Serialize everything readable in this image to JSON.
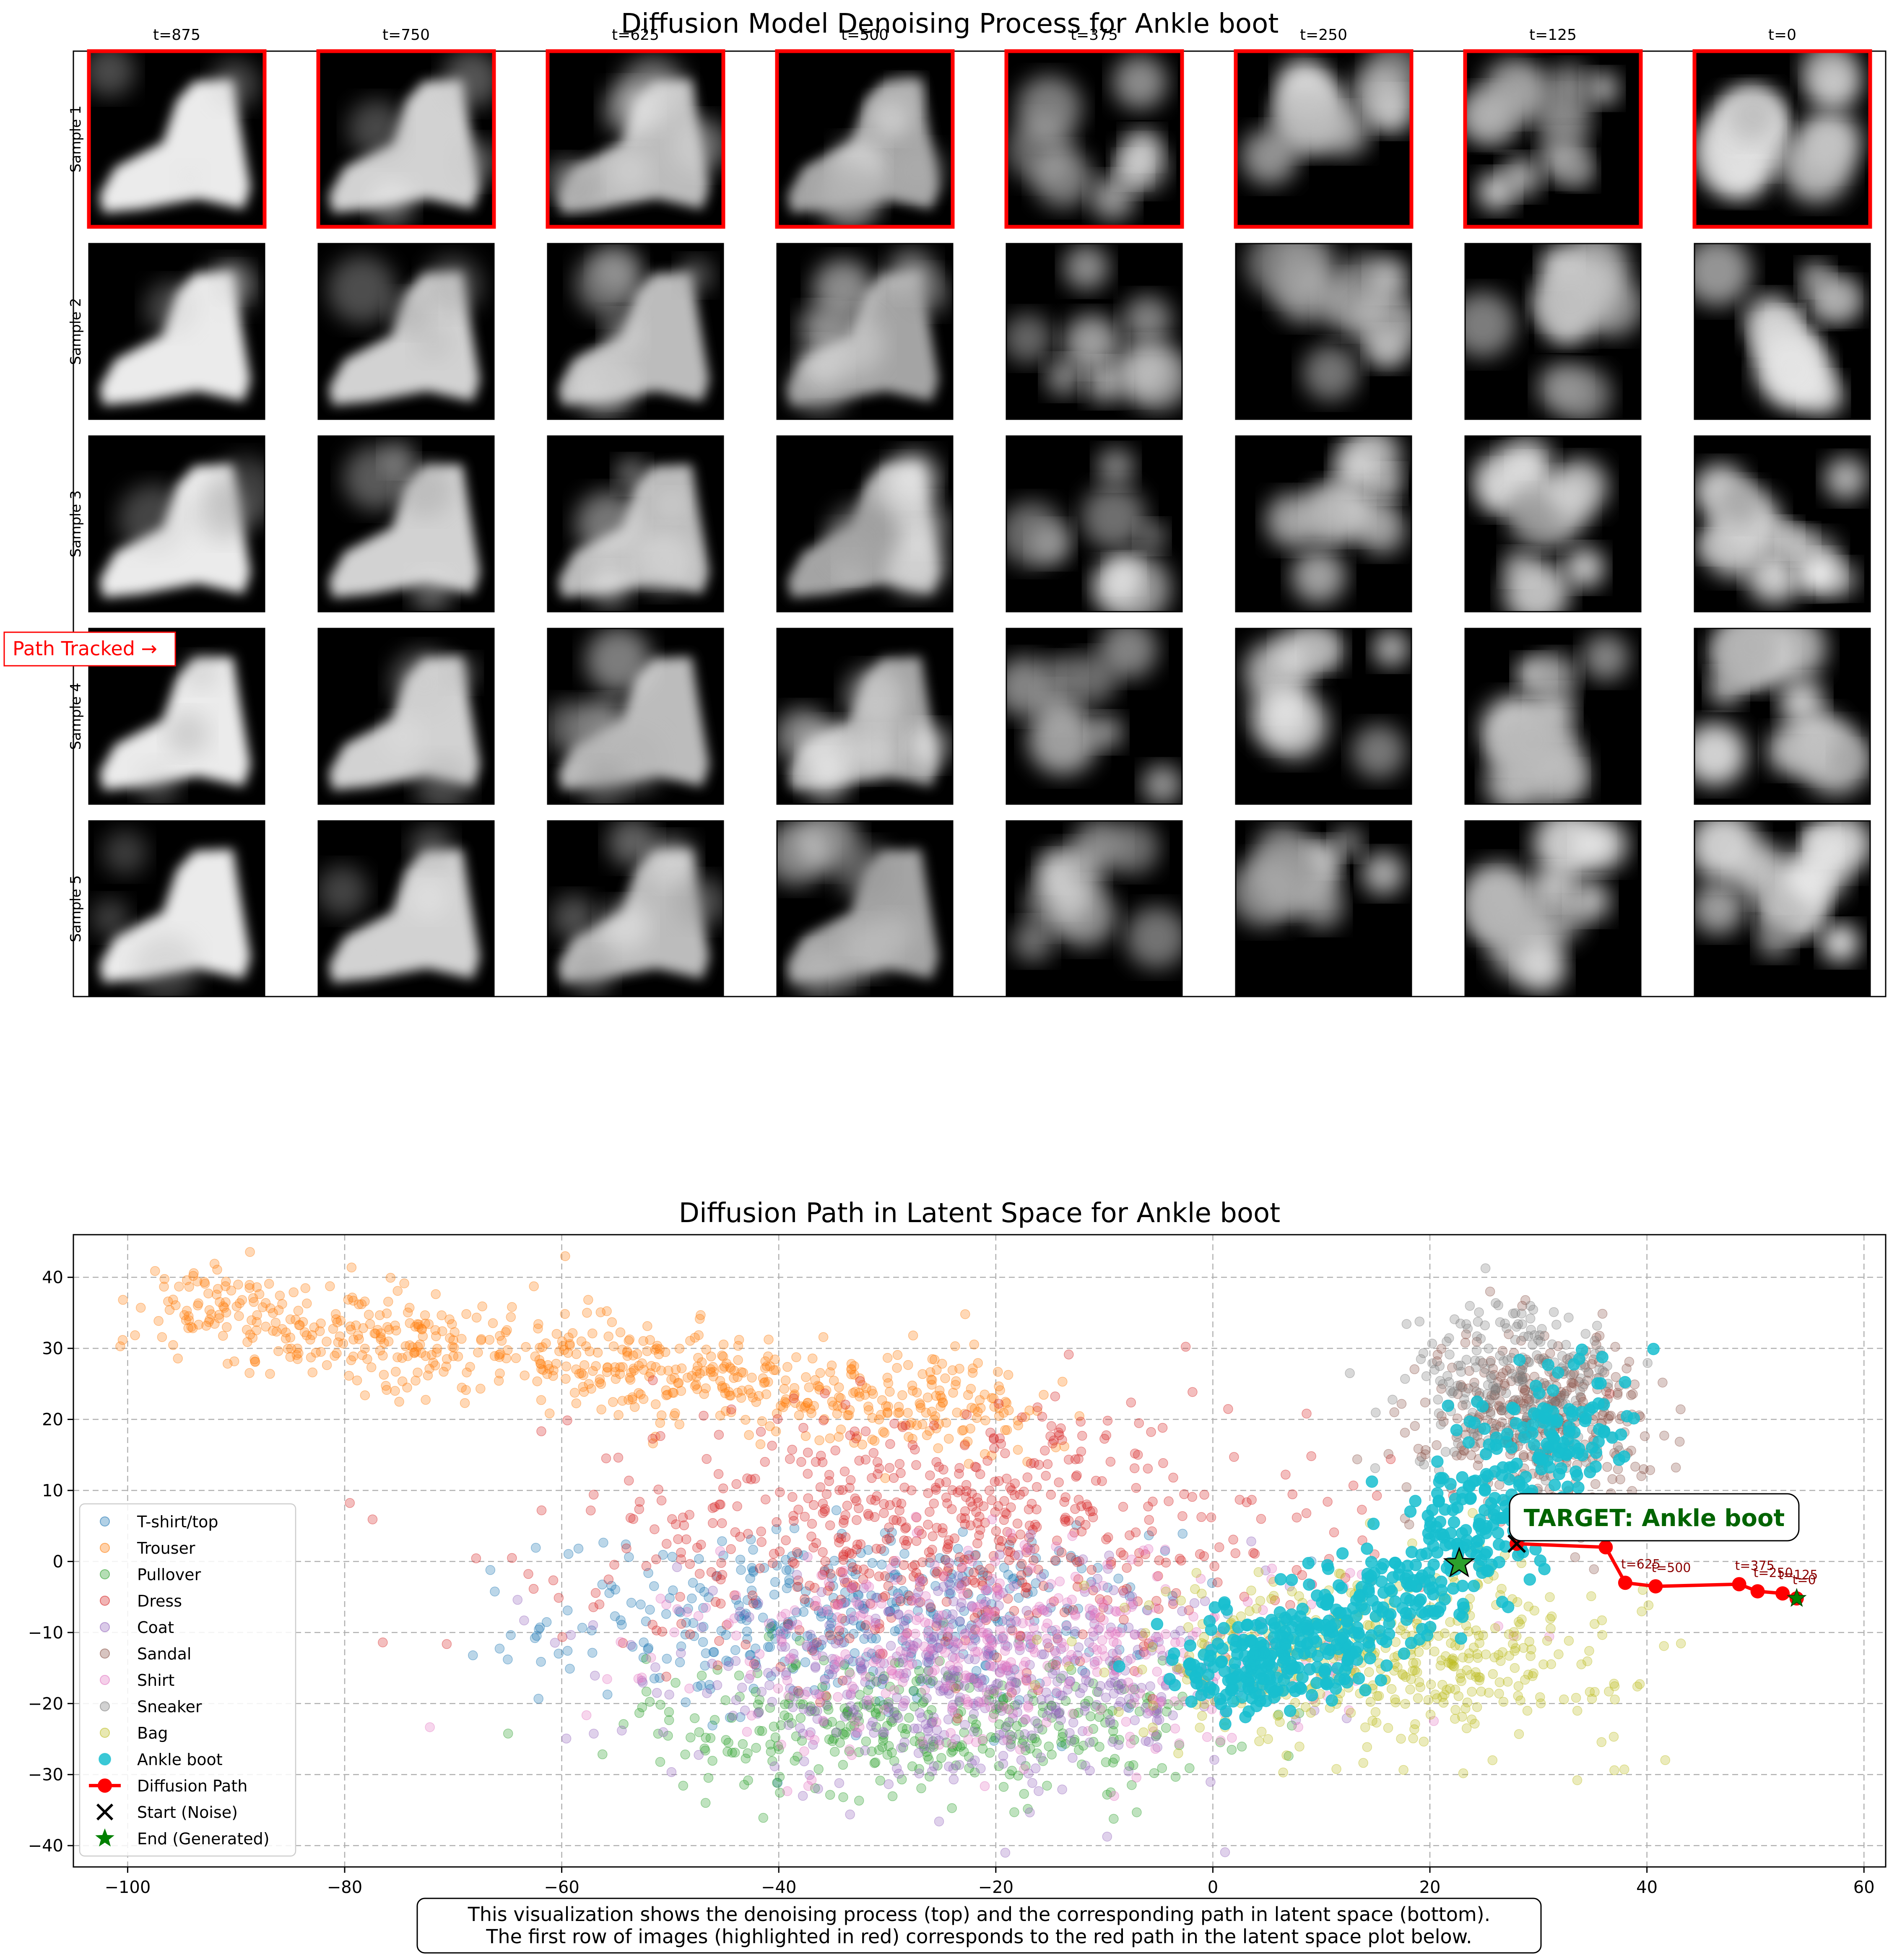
{
  "figure": {
    "grid_title": "Diffusion Model Denoising Process for Ankle boot",
    "timesteps": [
      "t=875",
      "t=750",
      "t=625",
      "t=500",
      "t=375",
      "t=250",
      "t=125",
      "t=0"
    ],
    "row_labels": [
      "Sample 1",
      "Sample 2",
      "Sample 3",
      "Sample 4",
      "Sample 5"
    ],
    "path_tracked_label": "Path Tracked →",
    "caption_line1": "This visualization shows the denoising process (top) and the corresponding path in latent space (bottom).",
    "caption_line2": "The first row of images (highlighted in red) corresponds to the red path in the latent space plot below.",
    "colors": {
      "highlight": "#ff0000",
      "target_text": "#006400",
      "path": "#ff0000",
      "path_label": "#8b0000"
    }
  },
  "chart_data": {
    "type": "scatter",
    "title": "Diffusion Path in Latent Space for Ankle boot",
    "xlabel": "",
    "ylabel": "",
    "xlim": [
      -105,
      62
    ],
    "ylim": [
      -43,
      46
    ],
    "xticks": [
      -100,
      -80,
      -60,
      -40,
      -20,
      0,
      20,
      40,
      60
    ],
    "yticks": [
      -40,
      -30,
      -20,
      -10,
      0,
      10,
      20,
      30,
      40
    ],
    "grid": true,
    "legend_position": "lower-left",
    "classes": [
      {
        "name": "T-shirt/top",
        "color": "#1f77b4",
        "center": [
          -33,
          -8
        ],
        "spread": [
          14,
          6
        ],
        "count": 420
      },
      {
        "name": "Trouser",
        "color": "#ff7f0e",
        "center": [
          -55,
          29
        ],
        "spread": [
          22,
          5
        ],
        "count": 700
      },
      {
        "name": "Pullover",
        "color": "#2ca02c",
        "center": [
          -26,
          -23
        ],
        "spread": [
          13,
          5
        ],
        "count": 380
      },
      {
        "name": "Dress",
        "color": "#d62728",
        "center": [
          -25,
          4
        ],
        "spread": [
          17,
          9
        ],
        "count": 650
      },
      {
        "name": "Coat",
        "color": "#9467bd",
        "center": [
          -22,
          -17
        ],
        "spread": [
          14,
          7
        ],
        "count": 520
      },
      {
        "name": "Sandal",
        "color": "#8c564b",
        "center": [
          30,
          20
        ],
        "spread": [
          5,
          6
        ],
        "count": 380
      },
      {
        "name": "Shirt",
        "color": "#e377c2",
        "center": [
          -18,
          -13
        ],
        "spread": [
          15,
          7
        ],
        "count": 460
      },
      {
        "name": "Sneaker",
        "color": "#7f7f7f",
        "center": [
          28,
          25
        ],
        "spread": [
          5,
          6
        ],
        "count": 230
      },
      {
        "name": "Bag",
        "color": "#bcbd22",
        "center": [
          16,
          -13
        ],
        "spread": [
          11,
          6
        ],
        "count": 480
      },
      {
        "name": "Ankle boot",
        "color": "#17becf",
        "center": [
          20,
          -7
        ],
        "spread": [
          9,
          5
        ],
        "count": 620
      }
    ],
    "path": {
      "name": "Diffusion Path",
      "points": [
        {
          "t": "t=875",
          "x": 28.0,
          "y": 2.5
        },
        {
          "t": "t=750",
          "x": 36.2,
          "y": 2.0
        },
        {
          "t": "t=625",
          "x": 38.0,
          "y": -3.0
        },
        {
          "t": "t=500",
          "x": 40.8,
          "y": -3.5
        },
        {
          "t": "t=375",
          "x": 48.5,
          "y": -3.2
        },
        {
          "t": "t=250",
          "x": 50.2,
          "y": -4.2
        },
        {
          "t": "t=125",
          "x": 52.5,
          "y": -4.5
        },
        {
          "t": "t=0",
          "x": 53.8,
          "y": -5.2
        }
      ]
    },
    "start_label": "Start (Noise)",
    "end_label": "End (Generated)",
    "target_star": {
      "x": 22.7,
      "y": -0.3
    },
    "target_annotation": "TARGET: Ankle boot"
  }
}
